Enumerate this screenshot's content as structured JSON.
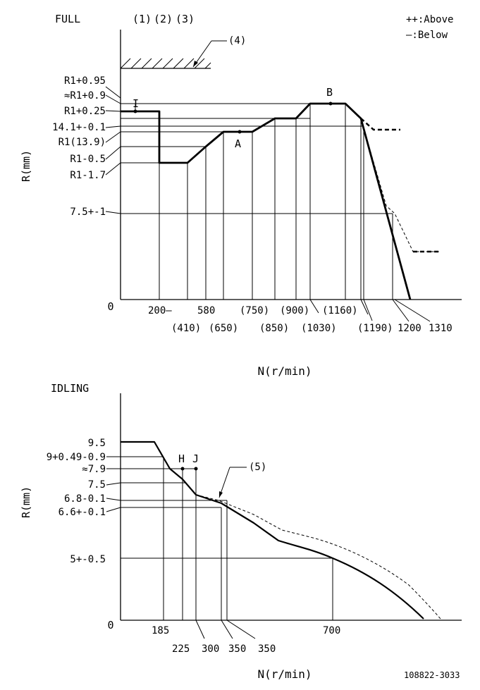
{
  "full": {
    "title": "FULL",
    "notes": [
      "(1)",
      "(2)",
      "(3)"
    ],
    "legend": {
      "above": "++:Above",
      "below": "—:Below"
    },
    "callout4": "(4)",
    "y_axis_label": "R(mm)",
    "x_axis_label": "N(r/min)",
    "origin": "0",
    "y_labels": [
      "R1+0.95",
      "≈R1+0.9",
      "R1+0.25",
      "14.1+-0.1",
      "R1(13.9)",
      "R1-0.5",
      "R1-1.7",
      "7.5+-1"
    ],
    "x_labels_top": [
      "200—",
      "580",
      "(750)",
      "(900)",
      "(1160)"
    ],
    "x_labels_bottom": [
      "(410)",
      "(650)",
      "(850)",
      "(1030)",
      "(1190)",
      "1200",
      "1310"
    ],
    "points": {
      "I": "I",
      "A": "A",
      "B": "B"
    }
  },
  "idling": {
    "title": "IDLING",
    "callout5": "(5)",
    "y_axis_label": "R(mm)",
    "x_axis_label": "N(r/min)",
    "origin": "0",
    "y_labels": [
      "9.5",
      "9+0.49-0.9",
      "≈7.9",
      "7.5",
      "6.8-0.1",
      "6.6+-0.1",
      "5+-0.5"
    ],
    "x_labels_top": [
      "185",
      "700"
    ],
    "x_labels_bottom": [
      "225",
      "300",
      "350",
      "350"
    ],
    "points": {
      "H": "H",
      "J": "J"
    }
  },
  "footer": {
    "code": "108822-3033"
  }
}
